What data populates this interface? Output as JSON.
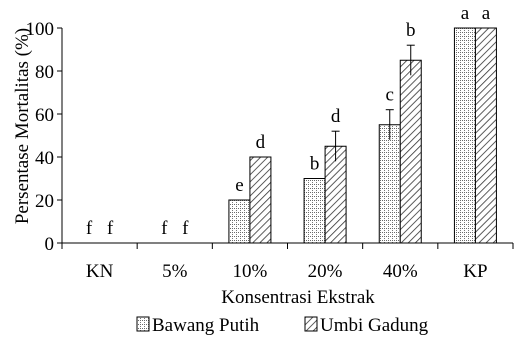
{
  "chart_data": {
    "type": "bar",
    "title": "",
    "xlabel": "Konsentrasi Ekstrak",
    "ylabel": "Persentase Mortalitas (%)",
    "ylim": [
      0,
      100
    ],
    "yticks": [
      0,
      20,
      40,
      60,
      80,
      100
    ],
    "grid": false,
    "legend_position": "bottom",
    "categories": [
      "KN",
      "5%",
      "10%",
      "20%",
      "40%",
      "KP"
    ],
    "series": [
      {
        "name": "Bawang Putih",
        "pattern": "dotted-grid",
        "values": [
          0,
          0,
          20,
          30,
          55,
          100
        ],
        "errors": [
          0,
          0,
          0,
          0,
          7,
          0
        ],
        "letters": [
          "f",
          "f",
          "e",
          "b",
          "c",
          "a"
        ]
      },
      {
        "name": "Umbi Gadung",
        "pattern": "diagonal-hatch",
        "values": [
          0,
          0,
          40,
          45,
          85,
          100
        ],
        "errors": [
          0,
          0,
          0,
          7,
          7,
          0
        ],
        "letters": [
          "f",
          "f",
          "d",
          "d",
          "b",
          "a"
        ]
      }
    ]
  }
}
